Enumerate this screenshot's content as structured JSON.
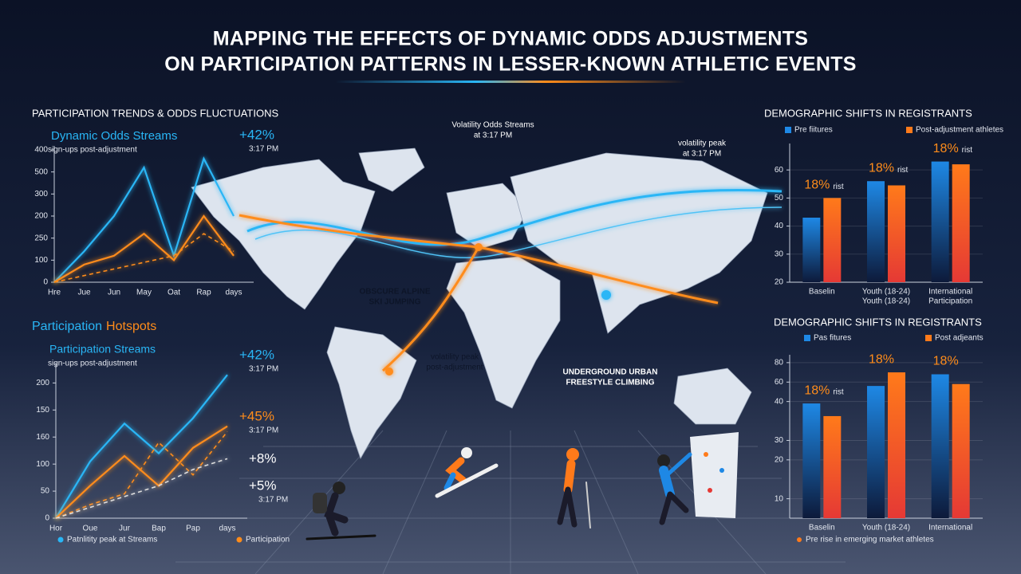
{
  "header": {
    "title_lines": [
      "MAPPING THE EFFECTS OF DYNAMIC ODDS ADJUSTMENTS",
      "ON PARTICIPATION PATTERNS IN LESSER-KNOWN ATHLETIC EVENTS"
    ]
  },
  "map": {
    "labels": [
      [
        "Volatility Odds Streams",
        "at 3:17 PM"
      ],
      [
        "volatility peak",
        "at 3:17 PM"
      ],
      [
        "OBSCURE ALPINE",
        "SKI JUMPING"
      ],
      [
        "volatility peak",
        "post-adjustment"
      ],
      [
        "UNDERGROUND URBAN",
        "FREESTYLE CLIMBING"
      ]
    ]
  },
  "chart_data": [
    {
      "type": "line",
      "title": "PARTICIPATION TRENDS & ODDS FLUCTUATIONS",
      "subtitle": "Dynamic Odds Streams",
      "note": "sign-ups post-adjustment",
      "annotations": [
        {
          "text": "+42%",
          "note": "3:17 PM",
          "color": "#29b6f6"
        }
      ],
      "categories": [
        "Hre",
        "Jue",
        "Jun",
        "May",
        "Oat",
        "Rap",
        "days"
      ],
      "series": [
        {
          "color": "#29b6f6",
          "values": [
            0,
            70,
            150,
            260,
            60,
            280,
            150
          ]
        },
        {
          "color": "#ff8c1a",
          "values": [
            0,
            40,
            60,
            110,
            50,
            150,
            60
          ]
        },
        {
          "color": "#ff8c1a",
          "dashed": true,
          "values": [
            0,
            15,
            30,
            45,
            60,
            110,
            70
          ]
        }
      ],
      "ylim": [
        0,
        300
      ],
      "yticks": [
        0,
        {
          "value": 50,
          "label": "100"
        },
        {
          "value": 100,
          "label": "250"
        },
        {
          "value": 150,
          "label": "200"
        },
        {
          "value": 200,
          "label": "300"
        },
        {
          "value": 250,
          "label": "500"
        },
        {
          "value": 300,
          "label": "400"
        }
      ],
      "grid": false
    },
    {
      "type": "line",
      "heading": [
        "Participation",
        "Hotspots"
      ],
      "subtitle": "Participation Streams",
      "note": "sign-ups post-adjustment",
      "annotations": [
        {
          "text": "+42%",
          "note": "3:17 PM",
          "color": "#29b6f6"
        },
        {
          "text": "+45%",
          "note": "3:17 PM",
          "color": "#ff8c1a"
        },
        {
          "text": "+8%",
          "color": "#ffffff"
        },
        {
          "text": "+5%",
          "note": "3:17 PM",
          "color": "#ffffff"
        }
      ],
      "categories": [
        "Hor",
        "Oue",
        "Jur",
        "Bap",
        "Pap",
        "days"
      ],
      "series": [
        {
          "name": "Patnlitity peak at Streams",
          "color": "#29b6f6",
          "values": [
            0,
            105,
            175,
            120,
            185,
            265
          ]
        },
        {
          "name": "Participation",
          "color": "#ff8c1a",
          "values": [
            0,
            60,
            115,
            60,
            130,
            170
          ]
        },
        {
          "color": "#ff8c1a",
          "dashed": true,
          "values": [
            0,
            25,
            45,
            140,
            80,
            160
          ]
        },
        {
          "color": "#dddddd",
          "dashed": true,
          "values": [
            0,
            20,
            40,
            60,
            90,
            110
          ]
        }
      ],
      "ylim": [
        0,
        280
      ],
      "yticks": [
        0,
        50,
        100,
        {
          "value": 150,
          "label": "160"
        },
        {
          "value": 200,
          "label": "150"
        },
        {
          "value": 250,
          "label": "200"
        }
      ],
      "grid": false
    },
    {
      "type": "bar",
      "title": "DEMOGRAPHIC SHIFTS IN REGISTRANTS",
      "categories": [
        "Baselin",
        "Youth (18-24)",
        "International"
      ],
      "subcategories": [
        null,
        "Youth (18-24)",
        "Participation"
      ],
      "series": [
        {
          "name": "Pre fiitures",
          "color": "#1e88e5",
          "values": [
            43,
            56,
            63
          ]
        },
        {
          "name": "Post-adjustment athletes",
          "color": "#ff7a1a",
          "values": [
            50,
            54.5,
            62
          ]
        }
      ],
      "annotations": [
        {
          "text": "18%",
          "note": "rist"
        },
        {
          "text": "18%",
          "note": "rist"
        },
        {
          "text": "18%",
          "note": "rist"
        }
      ],
      "ylim": [
        20,
        68
      ],
      "yticks": [
        20,
        30,
        40,
        50,
        60
      ],
      "grid": true
    },
    {
      "type": "bar",
      "title": "DEMOGRAPHIC SHIFTS IN REGISTRANTS",
      "categories": [
        "Baselin",
        "Youth (18-24)",
        "International"
      ],
      "series": [
        {
          "name": "Pas fitures",
          "color": "#1e88e5",
          "values": [
            59,
            68,
            74
          ]
        },
        {
          "name": "Post adjeants",
          "color": "#ff7a1a",
          "values": [
            52.5,
            75,
            69
          ]
        }
      ],
      "annotations": [
        {
          "text": "18%",
          "note": "rist"
        },
        {
          "text": "18%"
        },
        {
          "text": "18%"
        }
      ],
      "footer": "Pre rise in emerging market athletes",
      "ylim": [
        0,
        82
      ],
      "yticks": [
        10,
        {
          "value": 30,
          "label": "20"
        },
        {
          "value": 40,
          "label": "30"
        },
        {
          "value": 60,
          "label": "40"
        },
        {
          "value": 70,
          "label": "60"
        },
        80
      ],
      "grid": true
    }
  ]
}
